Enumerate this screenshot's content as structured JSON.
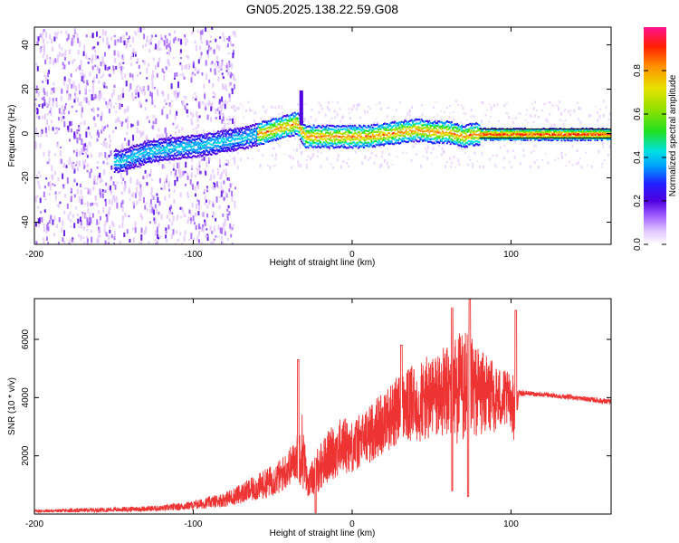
{
  "title": "GN05.2025.138.22.59.G08",
  "chart_data": [
    {
      "type": "heatmap",
      "xlabel": "Height of straight line (km)",
      "ylabel": "Frequency (Hz)",
      "xlim": [
        -200,
        163
      ],
      "ylim": [
        -50,
        48
      ],
      "xticks": [
        -200,
        -100,
        0,
        100
      ],
      "yticks": [
        -40,
        -20,
        0,
        20,
        40
      ],
      "colorbar": {
        "label": "Normalized spectral amplitude",
        "range": [
          0,
          1
        ],
        "ticks": [
          "0.0",
          "0.2",
          "0.4",
          "0.6",
          "0.8"
        ],
        "colormap": [
          "#ffffff",
          "#e3c8ff",
          "#a060ff",
          "#5000e0",
          "#2020ff",
          "#00a0ff",
          "#00e0e0",
          "#20e020",
          "#90e000",
          "#e8e000",
          "#ff9000",
          "#ff2000",
          "#ff1090"
        ]
      },
      "ridge": {
        "x": [
          -145,
          -130,
          -110,
          -95,
          -80,
          -65,
          -55,
          -45,
          -40,
          -35,
          -30,
          -20,
          -10,
          0,
          10,
          20,
          30,
          40,
          50,
          60,
          65,
          70,
          75,
          80,
          90,
          100,
          110,
          120,
          140,
          163
        ],
        "y": [
          -12,
          -8,
          -6,
          -5,
          -3,
          -1,
          1,
          3,
          4,
          5,
          -1,
          -1,
          -1,
          -1,
          -1,
          0,
          1,
          2,
          1,
          1,
          0,
          -1,
          0,
          0,
          0,
          0,
          0,
          0,
          0,
          0
        ]
      },
      "spike": {
        "x": -32,
        "y_from": 5,
        "y_to": 20
      },
      "noise_region": {
        "x_from": -200,
        "x_to": -80
      }
    },
    {
      "type": "line",
      "xlabel": "Height of straight line (km)",
      "ylabel": "SNR (10 * v/v)",
      "xlim": [
        -200,
        163
      ],
      "ylim": [
        0,
        7400
      ],
      "xticks": [
        -200,
        -100,
        0,
        100
      ],
      "yticks": [
        2000,
        4000,
        6000
      ],
      "color": "#ee3333",
      "envelope": {
        "x": [
          -200,
          -150,
          -120,
          -100,
          -80,
          -60,
          -45,
          -35,
          -32,
          -28,
          -22,
          -15,
          -5,
          0,
          10,
          20,
          30,
          40,
          50,
          60,
          65,
          70,
          75,
          80,
          90,
          100,
          102,
          105,
          110,
          120,
          140,
          163
        ],
        "mean": [
          100,
          150,
          200,
          300,
          500,
          900,
          1300,
          1900,
          2400,
          1000,
          1500,
          2000,
          2400,
          2300,
          2700,
          3200,
          3600,
          3800,
          4000,
          4200,
          4300,
          4400,
          4300,
          4200,
          4000,
          3900,
          3600,
          4150,
          4150,
          4100,
          4000,
          3850
        ],
        "amp": [
          50,
          80,
          100,
          150,
          250,
          450,
          600,
          700,
          1500,
          400,
          800,
          900,
          1000,
          900,
          1000,
          1100,
          1200,
          1400,
          1500,
          1600,
          1900,
          2000,
          1800,
          1500,
          1200,
          900,
          1200,
          100,
          80,
          80,
          80,
          100
        ]
      },
      "peaks": [
        {
          "x": -34,
          "y": 5300
        },
        {
          "x": 31,
          "y": 5800
        },
        {
          "x": 63,
          "y": 7100
        },
        {
          "x": 74,
          "y": 7400
        },
        {
          "x": 103,
          "y": 7000
        }
      ],
      "troughs": [
        {
          "x": -23,
          "y": 50
        },
        {
          "x": 63,
          "y": 800
        },
        {
          "x": 73,
          "y": 600
        }
      ]
    }
  ]
}
